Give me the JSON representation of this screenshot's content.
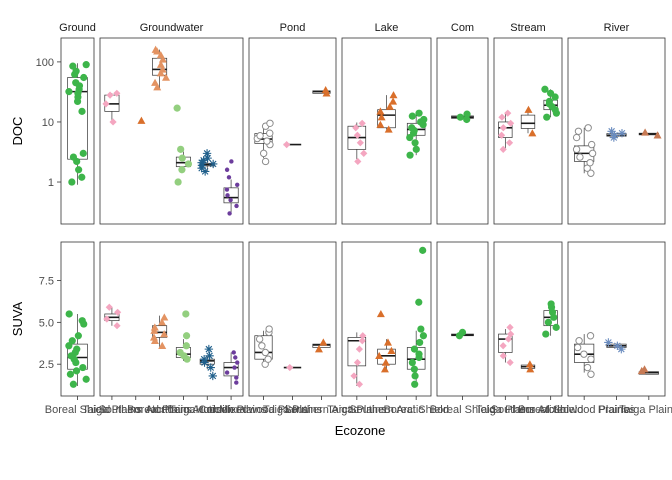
{
  "chart_data": {
    "type": "boxplot-faceted",
    "xlabel": "Ecozone",
    "rows": [
      {
        "name": "DOC",
        "scale": "log",
        "ylim": [
          0.2,
          250
        ],
        "ticks": [
          1,
          10,
          100
        ],
        "tick_labels": [
          "1",
          "10",
          "100"
        ]
      },
      {
        "name": "SUVA",
        "scale": "linear",
        "ylim": [
          0.6,
          9.8
        ],
        "ticks": [
          2.5,
          5.0,
          7.5
        ],
        "tick_labels": [
          "2.5",
          "5.0",
          "7.5"
        ]
      }
    ],
    "colors": {
      "Boreal Shield": "#3db54a",
      "Taiga Plains": "#f4a6c0",
      "Southern Arctic": "#d96f2b",
      "Boreal Plains": "#e39362",
      "Northern Arctic": "#93cf7f",
      "Taiga Cordillera": "#1f5f8b",
      "Hudson Plains": "#6c3d9c",
      "Mixedwood Plains": "#8c8c8c",
      "Prairies": "#6a8cbf",
      "Taiga Shield": "#c77a54"
    },
    "facets": [
      {
        "name": "Ground",
        "x_labels": [
          "Boreal Shield"
        ],
        "groups": [
          {
            "category": "Boreal Shield",
            "color": "#3db54a",
            "shape": "circle",
            "DOC": {
              "q1": 2.4,
              "median": 32,
              "q3": 55,
              "min": 0.9,
              "max": 95,
              "points": [
                1,
                1.2,
                1.6,
                2.2,
                2.6,
                3,
                15,
                22,
                26,
                30,
                32,
                35,
                40,
                45,
                55,
                62,
                70,
                85,
                90
              ]
            },
            "SUVA": {
              "q1": 2.2,
              "median": 2.9,
              "q3": 3.7,
              "min": 1.2,
              "max": 5.5,
              "points": [
                1.3,
                1.6,
                1.9,
                2.1,
                2.3,
                2.6,
                2.8,
                3.0,
                3.2,
                3.4,
                3.6,
                3.9,
                4.2,
                4.9,
                5.1,
                5.5
              ]
            }
          }
        ]
      },
      {
        "name": "Groundwater",
        "x_labels": [
          "Taiga Plains",
          "Southern Arctic",
          "Boreal Plains",
          "Northern Arctic",
          "Taiga Cordillera",
          "Hudson Plains"
        ],
        "groups": [
          {
            "category": "Taiga Plains",
            "color": "#f4a6c0",
            "shape": "diamond",
            "DOC": {
              "q1": 15,
              "median": 20,
              "q3": 28,
              "min": 10,
              "max": 30,
              "points": [
                10,
                20,
                28,
                30
              ]
            },
            "SUVA": {
              "q1": 5.1,
              "median": 5.3,
              "q3": 5.5,
              "min": 4.8,
              "max": 5.9,
              "points": [
                4.8,
                5.2,
                5.6,
                5.9
              ]
            }
          },
          {
            "category": "Southern Arctic",
            "color": "#d96f2b",
            "shape": "triangle",
            "DOC": {
              "points": [
                10.5
              ]
            },
            "SUVA": {
              "points": []
            }
          },
          {
            "category": "Boreal Plains",
            "color": "#e39362",
            "shape": "triangle",
            "DOC": {
              "q1": 60,
              "median": 75,
              "q3": 115,
              "min": 36,
              "max": 160,
              "points": [
                38,
                45,
                55,
                65,
                75,
                90,
                110,
                130,
                150,
                160
              ]
            },
            "SUVA": {
              "q1": 4.1,
              "median": 4.4,
              "q3": 4.8,
              "min": 3.5,
              "max": 5.4,
              "points": [
                3.6,
                3.9,
                4.1,
                4.3,
                4.5,
                4.7,
                5.0,
                5.3
              ]
            }
          },
          {
            "category": "Northern Arctic",
            "color": "#93cf7f",
            "shape": "circle",
            "DOC": {
              "q1": 1.8,
              "median": 2.1,
              "q3": 2.6,
              "min": 1.5,
              "max": 3.2,
              "points": [
                1,
                1.6,
                2.0,
                2.5,
                3.5,
                17
              ]
            },
            "SUVA": {
              "q1": 2.9,
              "median": 3.1,
              "q3": 3.5,
              "min": 2.7,
              "max": 4.0,
              "points": [
                2.8,
                3.0,
                3.2,
                3.6,
                4.2,
                5.5
              ]
            }
          },
          {
            "category": "Taiga Cordillera",
            "color": "#1f5f8b",
            "shape": "star",
            "DOC": {
              "q1": 1.85,
              "median": 1.95,
              "q3": 2.05,
              "min": 1.5,
              "max": 2.4,
              "points": [
                1.5,
                1.7,
                1.9,
                2.0,
                2.1,
                2.3,
                2.5,
                3
              ]
            },
            "SUVA": {
              "q1": 2.5,
              "median": 2.7,
              "q3": 2.8,
              "min": 2.2,
              "max": 3.0,
              "points": [
                1.8,
                2.3,
                2.6,
                2.8,
                3.0,
                3.4
              ]
            }
          },
          {
            "category": "Hudson Plains",
            "color": "#6c3d9c",
            "shape": "dot",
            "DOC": {
              "q1": 0.45,
              "median": 0.55,
              "q3": 0.8,
              "min": 0.3,
              "max": 1.1,
              "points": [
                0.3,
                0.4,
                0.5,
                0.6,
                0.75,
                0.9,
                1.2,
                1.6,
                2.2
              ]
            },
            "SUVA": {
              "q1": 1.8,
              "median": 2.3,
              "q3": 2.6,
              "min": 1.0,
              "max": 3.2,
              "points": [
                1.4,
                1.7,
                2.0,
                2.3,
                2.6,
                2.9,
                3.2
              ]
            }
          }
        ]
      },
      {
        "name": "Pond",
        "x_labels": [
          "Mixedwood Plains",
          "Taiga Plains",
          "Southern Arctic"
        ],
        "groups": [
          {
            "category": "Mixedwood Plains",
            "color": "#8c8c8c",
            "shape": "open-circle",
            "DOC": {
              "q1": 4.4,
              "median": 5.2,
              "q3": 6.4,
              "min": 2.5,
              "max": 9.5,
              "points": [
                2.2,
                3.0,
                4.2,
                4.8,
                5.3,
                5.9,
                6.5,
                8.5,
                9.5
              ]
            },
            "SUVA": {
              "q1": 2.8,
              "median": 3.2,
              "q3": 4.2,
              "min": 2.3,
              "max": 4.5,
              "points": [
                2.5,
                2.8,
                3.2,
                3.6,
                4.0,
                4.4,
                4.6
              ]
            }
          },
          {
            "category": "Taiga Plains",
            "color": "#f4a6c0",
            "shape": "diamond",
            "DOC": {
              "median": 4.2,
              "points": [
                4.2
              ]
            },
            "SUVA": {
              "median": 2.3,
              "points": [
                2.3
              ]
            }
          },
          {
            "category": "Southern Arctic",
            "color": "#d96f2b",
            "shape": "triangle",
            "DOC": {
              "q1": 30,
              "median": 32,
              "q3": 33,
              "points": [
                30,
                34
              ]
            },
            "SUVA": {
              "q1": 3.5,
              "median": 3.65,
              "q3": 3.7,
              "points": [
                3.4,
                3.8
              ]
            }
          }
        ]
      },
      {
        "name": "Lake",
        "x_labels": [
          "Taiga Plains",
          "Southern Arctic",
          "Boreal Shield"
        ],
        "groups": [
          {
            "category": "Taiga Plains",
            "color": "#f4a6c0",
            "shape": "diamond",
            "DOC": {
              "q1": 3.5,
              "median": 5.5,
              "q3": 8.5,
              "min": 2.2,
              "max": 9.8,
              "points": [
                2.2,
                3,
                4.5,
                6,
                8,
                9.5
              ]
            },
            "SUVA": {
              "q1": 2.4,
              "median": 3.9,
              "q3": 4.1,
              "min": 1.2,
              "max": 4.4,
              "points": [
                1.3,
                1.8,
                2.6,
                3.4,
                3.9,
                4.2
              ]
            }
          },
          {
            "category": "Southern Arctic",
            "color": "#d96f2b",
            "shape": "triangle",
            "DOC": {
              "q1": 8,
              "median": 13,
              "q3": 16,
              "min": 7.5,
              "max": 28,
              "points": [
                7.5,
                9,
                12,
                15,
                18,
                22,
                28
              ]
            },
            "SUVA": {
              "q1": 2.5,
              "median": 3.0,
              "q3": 3.4,
              "min": 2.1,
              "max": 4.0,
              "points": [
                2.2,
                2.6,
                3.0,
                3.3,
                3.8,
                5.5
              ]
            }
          },
          {
            "category": "Boreal Shield",
            "color": "#3db54a",
            "shape": "circle",
            "DOC": {
              "q1": 6,
              "median": 7.5,
              "q3": 9.5,
              "min": 2.8,
              "max": 14,
              "points": [
                2.8,
                3.5,
                4.5,
                5.5,
                6.5,
                7.2,
                8.0,
                9.0,
                10,
                11,
                12.5,
                14
              ]
            },
            "SUVA": {
              "q1": 2.2,
              "median": 2.8,
              "q3": 3.5,
              "min": 1.2,
              "max": 4.5,
              "points": [
                1.3,
                1.8,
                2.2,
                2.6,
                2.9,
                3.1,
                3.4,
                3.8,
                4.2,
                4.6,
                6.2,
                9.3
              ]
            }
          }
        ]
      },
      {
        "name": "Com",
        "x_labels": [
          "Boreal Shield"
        ],
        "groups": [
          {
            "category": "Boreal Shield",
            "color": "#3db54a",
            "shape": "circle",
            "DOC": {
              "q1": 11.5,
              "median": 12,
              "q3": 12.6,
              "points": [
                11,
                12,
                13.5
              ]
            },
            "SUVA": {
              "q1": 4.2,
              "median": 4.25,
              "q3": 4.3,
              "points": [
                4.2,
                4.4
              ]
            }
          }
        ]
      },
      {
        "name": "Stream",
        "x_labels": [
          "Taiga Plains",
          "Southern Arctic",
          "Boreal Shield"
        ],
        "groups": [
          {
            "category": "Taiga Plains",
            "color": "#f4a6c0",
            "shape": "diamond",
            "DOC": {
              "q1": 5.5,
              "median": 8,
              "q3": 10,
              "min": 3.5,
              "max": 14,
              "points": [
                3.5,
                4.5,
                6,
                8,
                9.5,
                12,
                14
              ]
            },
            "SUVA": {
              "q1": 3.2,
              "median": 4.0,
              "q3": 4.3,
              "min": 2.6,
              "max": 4.6,
              "points": [
                2.6,
                3.0,
                3.6,
                4.0,
                4.3,
                4.7
              ]
            }
          },
          {
            "category": "Southern Arctic",
            "color": "#d96f2b",
            "shape": "triangle",
            "DOC": {
              "q1": 7.8,
              "median": 9.5,
              "q3": 13,
              "min": 6.5,
              "max": 16,
              "points": [
                6.5,
                16
              ]
            },
            "SUVA": {
              "q1": 2.25,
              "median": 2.35,
              "q3": 2.45,
              "min": 2.2,
              "max": 2.5,
              "points": [
                2.2,
                2.5
              ]
            }
          },
          {
            "category": "Boreal Shield",
            "color": "#3db54a",
            "shape": "circle",
            "DOC": {
              "q1": 16,
              "median": 19,
              "q3": 23,
              "min": 12,
              "max": 35,
              "points": [
                12,
                14,
                16,
                18,
                20,
                22,
                26,
                30,
                35
              ]
            },
            "SUVA": {
              "q1": 4.8,
              "median": 5.3,
              "q3": 5.7,
              "min": 4.2,
              "max": 6.2,
              "points": [
                4.3,
                4.7,
                5.0,
                5.3,
                5.6,
                5.9,
                6.1
              ]
            }
          }
        ]
      },
      {
        "name": "River",
        "x_labels": [
          "Mixedwood Plains",
          "Prairies",
          "Taiga Plains",
          "Taiga Shield"
        ],
        "groups": [
          {
            "category": "Mixedwood Plains",
            "color": "#8c8c8c",
            "shape": "open-circle",
            "DOC": {
              "q1": 2.2,
              "median": 3,
              "q3": 4,
              "min": 1.4,
              "max": 8,
              "points": [
                1.4,
                1.7,
                2.1,
                2.6,
                3.0,
                3.5,
                4.2,
                5.5,
                7,
                8
              ]
            },
            "SUVA": {
              "q1": 2.6,
              "median": 3.1,
              "q3": 3.7,
              "min": 2.0,
              "max": 4.3,
              "points": [
                1.9,
                2.3,
                2.8,
                3.1,
                3.5,
                3.9,
                4.2
              ]
            }
          },
          {
            "category": "Prairies",
            "color": "#6a8cbf",
            "shape": "star",
            "DOC": {
              "q1": 5.8,
              "median": 6,
              "q3": 6.4,
              "points": [
                5.5,
                6,
                6.5,
                7
              ]
            },
            "SUVA": {
              "q1": 3.5,
              "median": 3.6,
              "q3": 3.7,
              "points": [
                3.4,
                3.6,
                3.8
              ]
            }
          },
          {
            "category": "Taiga Shield",
            "color": "#c77a54",
            "shape": "triangle",
            "DOC": {
              "q1": 6.1,
              "median": 6.3,
              "q3": 6.5,
              "points": [
                6,
                6.7
              ]
            },
            "SUVA": {
              "q1": 1.9,
              "median": 2.0,
              "q3": 2.05,
              "points": [
                2.1,
                2.2
              ]
            }
          }
        ]
      }
    ]
  }
}
